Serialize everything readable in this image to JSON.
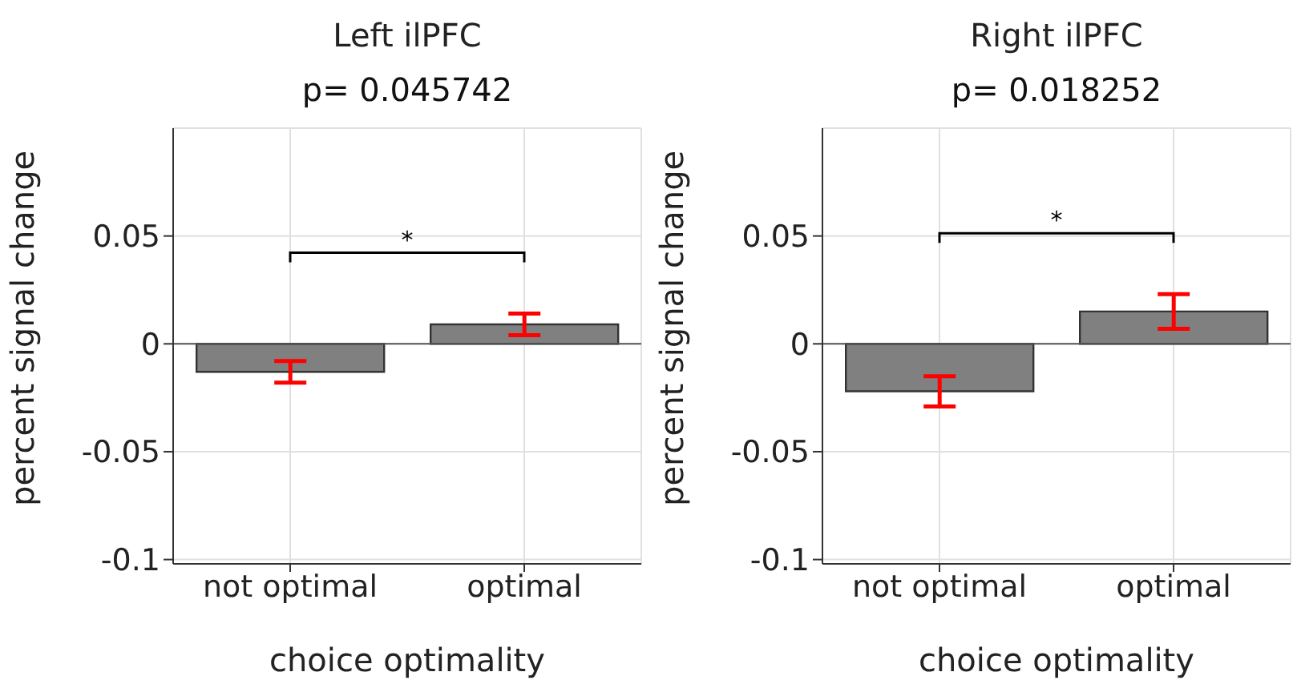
{
  "chart_data": [
    {
      "type": "bar",
      "title": "Left ilPFC",
      "subtitle": "p= 0.045742",
      "xlabel": "choice optimality",
      "ylabel": "percent signal change",
      "categories": [
        "not optimal",
        "optimal"
      ],
      "values": [
        -0.013,
        0.009
      ],
      "errors": [
        0.005,
        0.005
      ],
      "color": "#808080",
      "ylim": [
        -0.102,
        0.1
      ],
      "yticks": [
        -0.1,
        -0.05,
        0,
        0.05
      ],
      "grid": true,
      "ref_lines": [
        {
          "axis": "y",
          "value": 0
        }
      ],
      "annotations": [
        "*"
      ]
    },
    {
      "type": "bar",
      "title": "Right ilPFC",
      "subtitle": "p= 0.018252",
      "xlabel": "choice optimality",
      "ylabel": "percent signal change",
      "categories": [
        "not optimal",
        "optimal"
      ],
      "values": [
        -0.022,
        0.015
      ],
      "errors": [
        0.007,
        0.008
      ],
      "color": "#808080",
      "ylim": [
        -0.102,
        0.1
      ],
      "yticks": [
        -0.1,
        -0.05,
        0,
        0.05
      ],
      "grid": true,
      "ref_lines": [
        {
          "axis": "y",
          "value": 0
        }
      ],
      "annotations": [
        "*"
      ]
    }
  ]
}
